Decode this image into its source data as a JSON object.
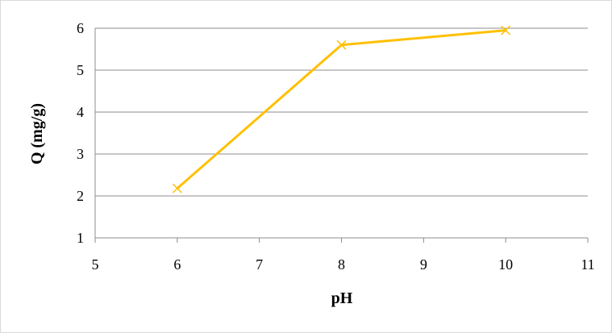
{
  "chart_data": {
    "type": "line",
    "xlabel": "pH",
    "ylabel": "Q (mg/g)",
    "xlim": [
      5,
      11
    ],
    "ylim": [
      1,
      6
    ],
    "x_ticks": [
      "5",
      "6",
      "7",
      "8",
      "9",
      "10",
      "11"
    ],
    "y_ticks": [
      "1",
      "2",
      "3",
      "4",
      "5",
      "6"
    ],
    "grid": "horizontal",
    "series": [
      {
        "color": "#FFC000",
        "marker": "x",
        "points": [
          {
            "x": 6,
            "y": 2.18
          },
          {
            "x": 8,
            "y": 5.6
          },
          {
            "x": 10,
            "y": 5.95
          }
        ]
      }
    ]
  }
}
